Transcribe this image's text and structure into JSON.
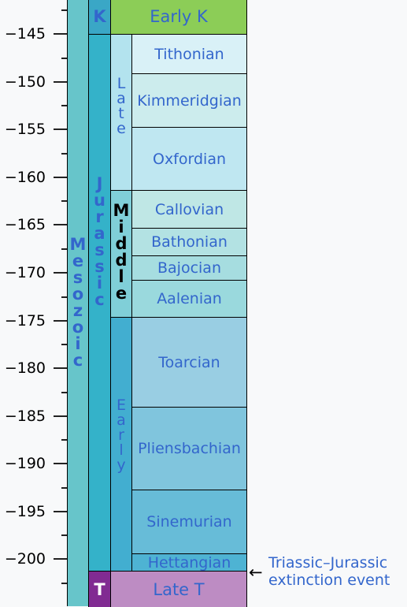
{
  "axis": {
    "ticks": [
      "−145",
      "−150",
      "−155",
      "−160",
      "−165",
      "−170",
      "−175",
      "−180",
      "−185",
      "−190",
      "−195",
      "−200"
    ]
  },
  "era": {
    "label": "Mesozoic",
    "color": "#67c5ca"
  },
  "periods": [
    {
      "label": "K",
      "color": "#3aa7c6",
      "bg": "#8ccd57"
    },
    {
      "label": "Jurassic",
      "color": "#34b2c9"
    },
    {
      "label": "T",
      "color": "#812b92"
    }
  ],
  "epochs": [
    {
      "label": "Early K",
      "color": "#8ccd57"
    },
    {
      "label": "Late",
      "color": "#b3e3ee"
    },
    {
      "label": "Middle",
      "color": "#80cfd8"
    },
    {
      "label": "Early",
      "color": "#42aed0"
    },
    {
      "label": "Late T",
      "color": "#bd8cc3"
    }
  ],
  "stages": [
    {
      "label": "Tithonian",
      "color": "#d9f1f7"
    },
    {
      "label": "Kimmeridgian",
      "color": "#cceced"
    },
    {
      "label": "Oxfordian",
      "color": "#bfe7f1"
    },
    {
      "label": "Callovian",
      "color": "#bfe7e5"
    },
    {
      "label": "Bathonian",
      "color": "#b3e2e3"
    },
    {
      "label": "Bajocian",
      "color": "#a6dde0"
    },
    {
      "label": "Aalenian",
      "color": "#9ad9dd"
    },
    {
      "label": "Toarcian",
      "color": "#99cee3"
    },
    {
      "label": "Pliensbachian",
      "color": "#80c5dd"
    },
    {
      "label": "Sinemurian",
      "color": "#67bcd8"
    },
    {
      "label": "Hettangian",
      "color": "#4eb3d3"
    }
  ],
  "event": {
    "arrow": "←",
    "line1": "Triassic–Jurassic",
    "line2": "extinction event"
  }
}
